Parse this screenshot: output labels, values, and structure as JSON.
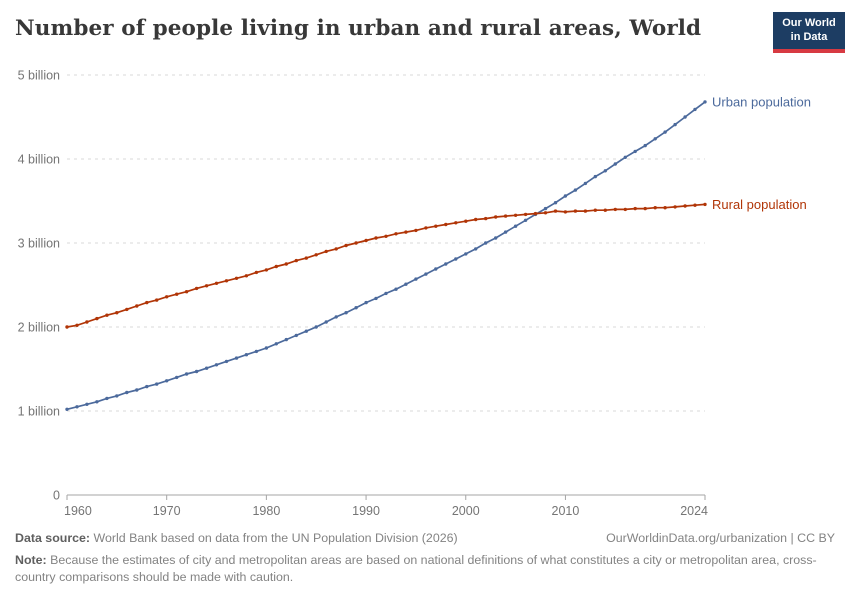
{
  "header": {
    "title": "Number of people living in urban and rural areas, World",
    "logo": {
      "line1": "Our World",
      "line2": "in Data",
      "bg_color": "#1d3d63",
      "accent_color": "#d73a42"
    }
  },
  "chart_data": {
    "type": "line",
    "title": "Number of people living in urban and rural areas, World",
    "xlabel": "",
    "ylabel": "",
    "unit": "billion people",
    "ylim": [
      0,
      5
    ],
    "grid": "horizontal dashed",
    "legend_position": "end-of-line labels",
    "marker": "dot",
    "yticks": [
      {
        "value": 0,
        "label": "0"
      },
      {
        "value": 1,
        "label": "1 billion"
      },
      {
        "value": 2,
        "label": "2 billion"
      },
      {
        "value": 3,
        "label": "3 billion"
      },
      {
        "value": 4,
        "label": "4 billion"
      },
      {
        "value": 5,
        "label": "5 billion"
      }
    ],
    "xticks": [
      1960,
      1970,
      1980,
      1990,
      2000,
      2010,
      2024
    ],
    "x": [
      1960,
      1961,
      1962,
      1963,
      1964,
      1965,
      1966,
      1967,
      1968,
      1969,
      1970,
      1971,
      1972,
      1973,
      1974,
      1975,
      1976,
      1977,
      1978,
      1979,
      1980,
      1981,
      1982,
      1983,
      1984,
      1985,
      1986,
      1987,
      1988,
      1989,
      1990,
      1991,
      1992,
      1993,
      1994,
      1995,
      1996,
      1997,
      1998,
      1999,
      2000,
      2001,
      2002,
      2003,
      2004,
      2005,
      2006,
      2007,
      2008,
      2009,
      2010,
      2011,
      2012,
      2013,
      2014,
      2015,
      2016,
      2017,
      2018,
      2019,
      2020,
      2021,
      2022,
      2023,
      2024
    ],
    "series": [
      {
        "name": "Urban population",
        "color": "#4C6A9C",
        "values": [
          1.02,
          1.05,
          1.08,
          1.11,
          1.15,
          1.18,
          1.22,
          1.25,
          1.29,
          1.32,
          1.36,
          1.4,
          1.44,
          1.47,
          1.51,
          1.55,
          1.59,
          1.63,
          1.67,
          1.71,
          1.75,
          1.8,
          1.85,
          1.9,
          1.95,
          2.0,
          2.06,
          2.12,
          2.17,
          2.23,
          2.29,
          2.34,
          2.4,
          2.45,
          2.51,
          2.57,
          2.63,
          2.69,
          2.75,
          2.81,
          2.87,
          2.93,
          3.0,
          3.06,
          3.13,
          3.2,
          3.27,
          3.34,
          3.41,
          3.48,
          3.56,
          3.63,
          3.71,
          3.79,
          3.86,
          3.94,
          4.02,
          4.09,
          4.16,
          4.24,
          4.32,
          4.41,
          4.5,
          4.59,
          4.68
        ]
      },
      {
        "name": "Rural population",
        "color": "#B13507",
        "values": [
          2.0,
          2.02,
          2.06,
          2.1,
          2.14,
          2.17,
          2.21,
          2.25,
          2.29,
          2.32,
          2.36,
          2.39,
          2.42,
          2.46,
          2.49,
          2.52,
          2.55,
          2.58,
          2.61,
          2.65,
          2.68,
          2.72,
          2.75,
          2.79,
          2.82,
          2.86,
          2.9,
          2.93,
          2.97,
          3.0,
          3.03,
          3.06,
          3.08,
          3.11,
          3.13,
          3.15,
          3.18,
          3.2,
          3.22,
          3.24,
          3.26,
          3.28,
          3.29,
          3.31,
          3.32,
          3.33,
          3.34,
          3.35,
          3.36,
          3.38,
          3.37,
          3.38,
          3.38,
          3.39,
          3.39,
          3.4,
          3.4,
          3.41,
          3.41,
          3.42,
          3.42,
          3.43,
          3.44,
          3.45,
          3.46
        ]
      }
    ]
  },
  "footer": {
    "source_label": "Data source:",
    "source_text": " World Bank based on data from the UN Population Division (2026)",
    "attribution": "OurWorldinData.org/urbanization | CC BY",
    "note_label": "Note:",
    "note_text": " Because the estimates of city and metropolitan areas are based on national definitions of what constitutes a city or metropolitan area, cross-country comparisons should be made with caution."
  }
}
